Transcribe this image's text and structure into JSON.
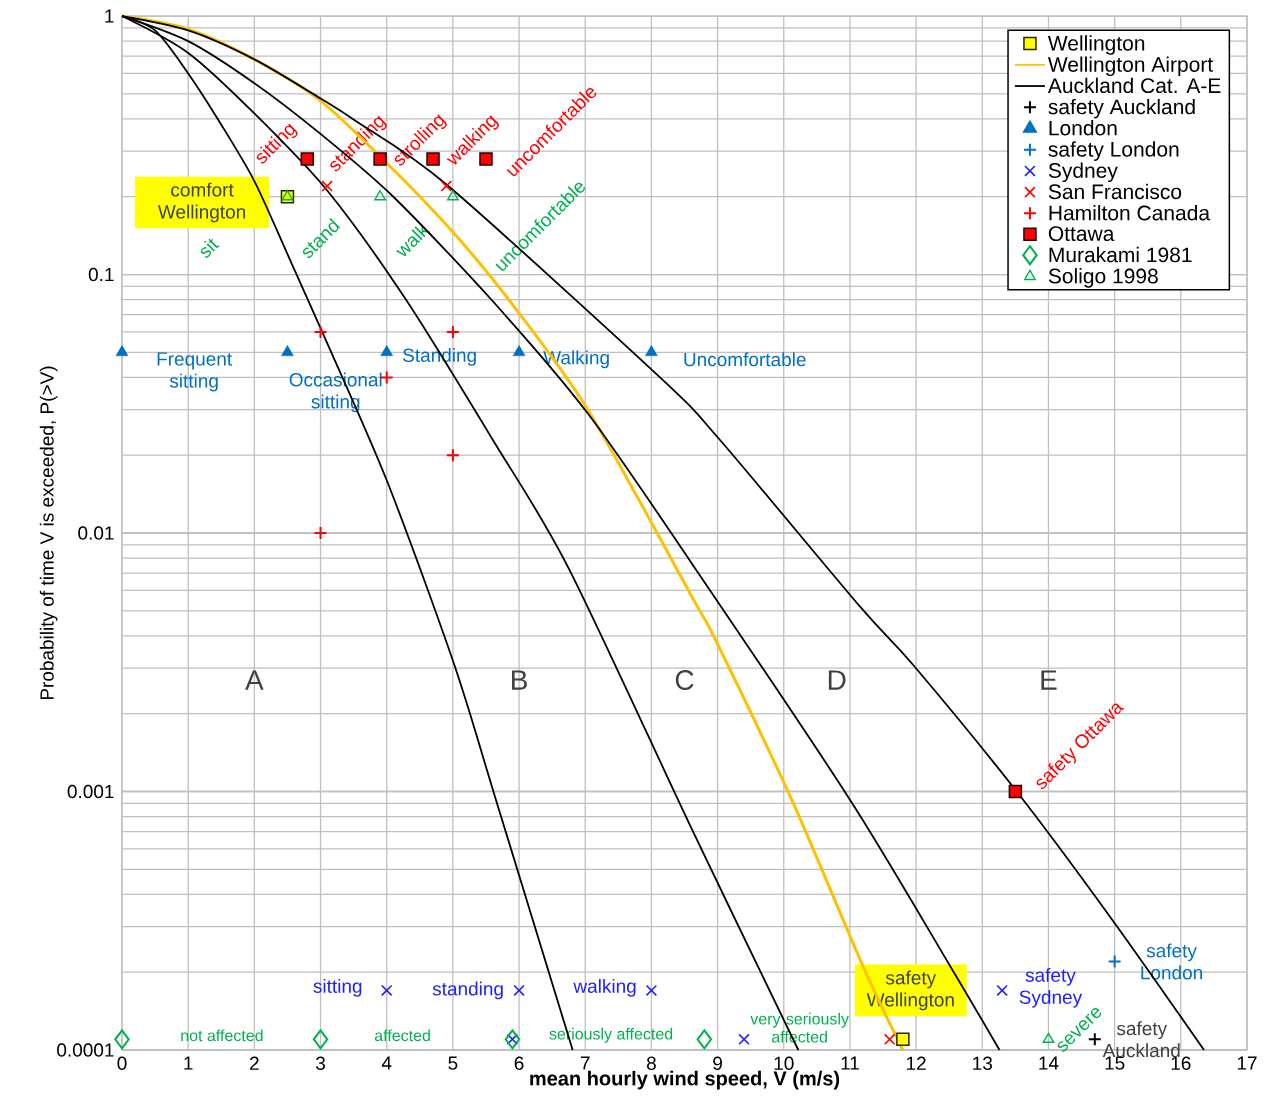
{
  "chart_data": {
    "type": "line",
    "xlabel": "mean hourly wind speed, V (m/s)",
    "ylabel": "Probability of time V is exceeded, P(>V)",
    "xlim": [
      0,
      17
    ],
    "xticks": [
      0,
      1,
      2,
      3,
      4,
      5,
      6,
      7,
      8,
      9,
      10,
      11,
      12,
      13,
      14,
      15,
      16,
      17
    ],
    "ylim": [
      0.0001,
      1
    ],
    "yticks": [
      0.0001,
      0.001,
      0.01,
      0.1,
      1
    ],
    "log": "y",
    "grid": true,
    "legend": "top right",
    "series": [
      {
        "name": "Wellington",
        "type": "scatter",
        "marker": "square",
        "color": "#ffff00",
        "x": [
          2.5,
          11.8
        ],
        "values": [
          0.2,
          0.00011
        ]
      },
      {
        "name": "Wellington Airport",
        "marker": "none",
        "color": "#ffc000",
        "x": [
          0,
          1,
          2,
          3,
          4,
          5,
          5.86,
          7.04,
          8.64,
          8.96,
          10.12,
          11.2,
          11.8
        ],
        "values": [
          1,
          0.89,
          0.68,
          0.47,
          0.27,
          0.146,
          0.079,
          0.03,
          0.0055,
          0.0039,
          0.00093,
          0.00021,
          0.0001
        ]
      },
      {
        "name": "Auckland Cat. A-E",
        "marker": "none",
        "color": "#000000",
        "x": [
          0,
          0.5,
          1,
          1.5,
          2,
          2.5,
          3,
          4,
          5.02,
          5.65,
          6.81
        ],
        "values": [
          1,
          0.88,
          0.6,
          0.38,
          0.23,
          0.12,
          0.062,
          0.016,
          0.0031,
          0.00093,
          0.0001
        ]
      },
      {
        "marker": "none",
        "color": "#000000",
        "x": [
          0,
          1,
          2,
          3.11,
          4.29,
          5.6,
          6.75,
          8.64,
          10.22
        ],
        "values": [
          1,
          0.72,
          0.42,
          0.21,
          0.08,
          0.023,
          0.0073,
          0.00069,
          0.0001
        ]
      },
      {
        "marker": "none",
        "color": "#000000",
        "x": [
          0,
          1,
          2,
          3,
          4.1,
          5.6,
          7.04,
          8.6,
          11,
          12.52,
          13.26
        ],
        "values": [
          1,
          0.8,
          0.55,
          0.35,
          0.2,
          0.079,
          0.029,
          0.0077,
          0.00093,
          0.00021,
          0.0001
        ]
      },
      {
        "marker": "none",
        "color": "#000000",
        "x": [
          0,
          1,
          2,
          3,
          3.55,
          4.93,
          8.13,
          9.03,
          11.15,
          11.95,
          13.52,
          14.96,
          16.35
        ],
        "values": [
          1,
          0.88,
          0.68,
          0.48,
          0.39,
          0.22,
          0.04,
          0.023,
          0.0052,
          0.0031,
          0.001,
          0.00032,
          0.0001
        ]
      },
      {
        "name": "safety Auckland",
        "type": "scatter",
        "color": "#000000",
        "x": [
          14.7
        ],
        "values": [
          0.00011
        ]
      },
      {
        "name": "London",
        "type": "scatter",
        "marker": "triangle",
        "color": "#0070c0",
        "x": [
          0,
          2.5,
          4,
          6,
          8
        ],
        "values": [
          0.05,
          0.05,
          0.05,
          0.05,
          0.05
        ]
      },
      {
        "name": "safety London",
        "type": "scatter",
        "color": "#0070c0",
        "x": [
          15
        ],
        "values": [
          0.00022
        ]
      },
      {
        "name": "Sydney",
        "type": "scatter",
        "marker": "cross",
        "color": "#2020ff",
        "x": [
          4,
          6,
          8,
          5.9,
          9.4,
          13.3
        ],
        "values": [
          0.00017,
          0.00017,
          0.00017,
          0.00011,
          0.00011,
          0.00017
        ]
      },
      {
        "name": "San Francisco",
        "type": "scatter",
        "marker": "cross",
        "color": "#ff0000",
        "x": [
          3.1,
          4.9,
          11.6
        ],
        "values": [
          0.22,
          0.22,
          0.00011
        ]
      },
      {
        "name": "Hamilton Canada",
        "type": "scatter",
        "color": "#ff0000",
        "x": [
          3,
          5,
          4,
          5,
          3
        ],
        "values": [
          0.06,
          0.06,
          0.04,
          0.02,
          0.01
        ]
      },
      {
        "name": "Ottawa",
        "type": "scatter",
        "marker": "square",
        "color": "#ff0000",
        "x": [
          2.8,
          3.9,
          4.7,
          5.5,
          13.5
        ],
        "values": [
          0.28,
          0.28,
          0.28,
          0.28,
          0.001
        ]
      },
      {
        "name": "Murakami 1981",
        "type": "scatter",
        "marker": "diamond",
        "color": "#00b050",
        "x": [
          0,
          3,
          5.9,
          8.8
        ],
        "values": [
          0.00011,
          0.00011,
          0.00011,
          0.00011
        ]
      },
      {
        "name": "Soligo 1998",
        "type": "scatter",
        "marker": "triangle-open",
        "color": "#00b050",
        "x": [
          2.5,
          3.9,
          5,
          14
        ],
        "values": [
          0.2,
          0.2,
          0.2,
          0.00011
        ]
      }
    ],
    "annotations": [
      "A",
      "B",
      "C",
      "D",
      "E",
      "comfort Wellington",
      "safety Wellington",
      "sitting",
      "standing",
      "strolling",
      "walking",
      "uncomfortable",
      "safety Ottawa",
      "sit",
      "stand",
      "walk",
      "uncomfortable",
      "severe",
      "Frequent sitting",
      "Occasional sitting",
      "Standing",
      "Walking",
      "Uncomfortable",
      "safety London",
      "sitting",
      "standing",
      "walking",
      "safety Sydney",
      "not affected",
      "affected",
      "seriously affected",
      "very seriously affected",
      "safety Auckland"
    ]
  }
}
